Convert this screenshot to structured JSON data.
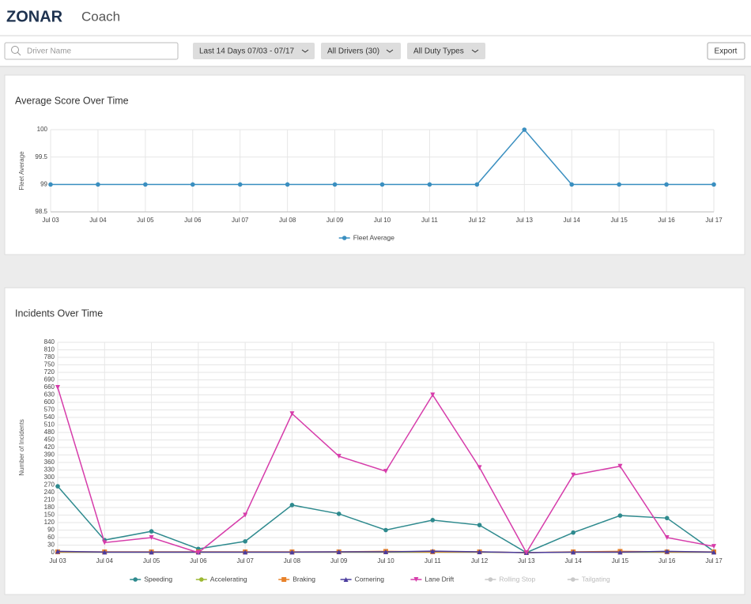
{
  "header": {
    "brand": "ZONAR",
    "product": "Coach"
  },
  "toolbar": {
    "search_placeholder": "Driver Name",
    "date_filter": "Last 14 Days 07/03 - 07/17",
    "driver_filter": "All Drivers (30)",
    "duty_filter": "All Duty Types",
    "export": "Export"
  },
  "chart_data": [
    {
      "type": "line",
      "title": "Average Score Over Time",
      "y_label": "Fleet Average",
      "categories": [
        "Jul 03",
        "Jul 04",
        "Jul 05",
        "Jul 06",
        "Jul 07",
        "Jul 08",
        "Jul 09",
        "Jul 10",
        "Jul 11",
        "Jul 12",
        "Jul 13",
        "Jul 14",
        "Jul 15",
        "Jul 16",
        "Jul 17"
      ],
      "series": [
        {
          "name": "Fleet Average",
          "color": "#3a8fc0",
          "marker": "circle",
          "values": [
            99,
            99,
            99,
            99,
            99,
            99,
            99,
            99,
            99,
            99,
            100,
            99,
            99,
            99,
            99
          ]
        }
      ],
      "ylim": [
        98.5,
        100
      ],
      "yticks": [
        98.5,
        99,
        99.5,
        100
      ],
      "grid": true,
      "legend": "bottom"
    },
    {
      "type": "line",
      "title": "Incidents Over Time",
      "y_label": "Number of Incidents",
      "categories": [
        "Jul 03",
        "Jul 04",
        "Jul 05",
        "Jul 06",
        "Jul 07",
        "Jul 08",
        "Jul 09",
        "Jul 10",
        "Jul 11",
        "Jul 12",
        "Jul 13",
        "Jul 14",
        "Jul 15",
        "Jul 16",
        "Jul 17"
      ],
      "series": [
        {
          "name": "Speeding",
          "color": "#2e8a8e",
          "marker": "circle",
          "values": [
            265,
            50,
            85,
            15,
            45,
            190,
            155,
            90,
            130,
            110,
            0,
            80,
            148,
            138,
            5
          ]
        },
        {
          "name": "Accelerating",
          "color": "#9cb832",
          "marker": "circle",
          "values": [
            2,
            2,
            2,
            2,
            2,
            2,
            2,
            2,
            2,
            2,
            0,
            2,
            2,
            2,
            2
          ]
        },
        {
          "name": "Braking",
          "color": "#e8822a",
          "marker": "square",
          "values": [
            3,
            3,
            3,
            3,
            3,
            3,
            3,
            5,
            3,
            3,
            0,
            3,
            5,
            3,
            3
          ]
        },
        {
          "name": "Cornering",
          "color": "#4b3c9e",
          "marker": "triangle",
          "values": [
            5,
            2,
            2,
            2,
            2,
            2,
            3,
            3,
            6,
            3,
            0,
            2,
            2,
            5,
            2
          ]
        },
        {
          "name": "Lane Drift",
          "color": "#d63caa",
          "marker": "triangle-down",
          "values": [
            660,
            40,
            60,
            0,
            150,
            555,
            385,
            325,
            630,
            340,
            0,
            310,
            345,
            60,
            25
          ]
        },
        {
          "name": "Rolling Stop",
          "color": "#c8c8c8",
          "marker": "circle",
          "visible": false
        },
        {
          "name": "Tailgating",
          "color": "#c8c8c8",
          "marker": "circle",
          "visible": false
        }
      ],
      "ylim": [
        0,
        840
      ],
      "yticks": [
        0,
        30,
        60,
        90,
        120,
        150,
        180,
        210,
        240,
        270,
        300,
        330,
        360,
        390,
        420,
        450,
        480,
        510,
        540,
        570,
        600,
        630,
        660,
        690,
        720,
        750,
        780,
        810,
        840
      ],
      "grid": true,
      "legend": "bottom"
    }
  ]
}
